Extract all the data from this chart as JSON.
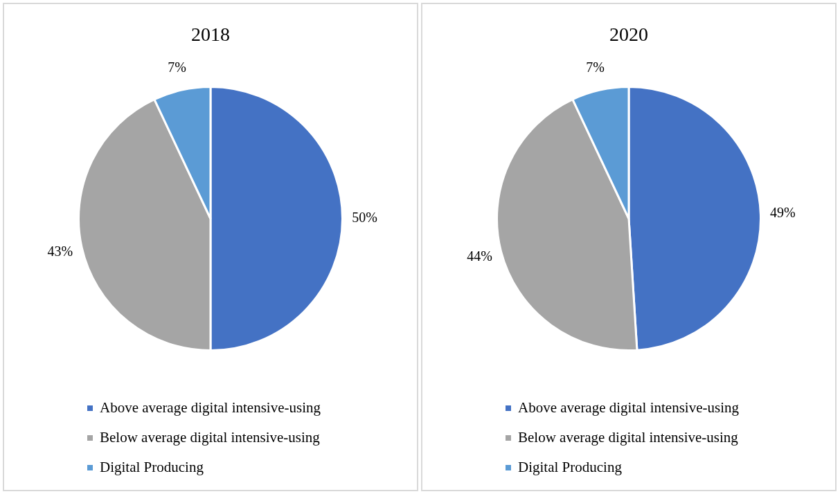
{
  "chart_data": [
    {
      "type": "pie",
      "title": "2018",
      "categories": [
        "Above average digital intensive-using",
        "Below average digital intensive-using",
        "Digital Producing"
      ],
      "values": [
        50,
        43,
        7
      ],
      "value_labels": [
        "50%",
        "43%",
        "7%"
      ],
      "colors": [
        "#4472c4",
        "#a5a5a5",
        "#5b9bd5"
      ],
      "legend": "bottom"
    },
    {
      "type": "pie",
      "title": "2020",
      "categories": [
        "Above average digital intensive-using",
        "Below average digital intensive-using",
        "Digital Producing"
      ],
      "values": [
        49,
        44,
        7
      ],
      "value_labels": [
        "49%",
        "44%",
        "7%"
      ],
      "colors": [
        "#4472c4",
        "#a5a5a5",
        "#5b9bd5"
      ],
      "legend": "bottom"
    }
  ]
}
